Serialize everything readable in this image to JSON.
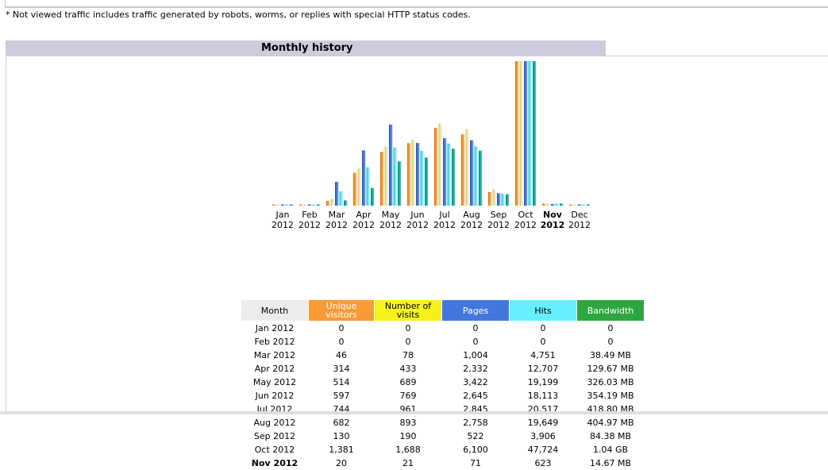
{
  "note": "* Not viewed traffic includes traffic generated by robots, worms, or replies with special HTTP status codes.",
  "panel": {
    "title": "Monthly history"
  },
  "table": {
    "headers": {
      "month": "Month",
      "unique": "Unique visitors",
      "visits": "Number of visits",
      "pages": "Pages",
      "hits": "Hits",
      "bandwidth": "Bandwidth"
    },
    "current_month": "Nov 2012",
    "rows": [
      {
        "month": "Jan 2012",
        "unique": "0",
        "visits": "0",
        "pages": "0",
        "hits": "0",
        "bandwidth": "0"
      },
      {
        "month": "Feb 2012",
        "unique": "0",
        "visits": "0",
        "pages": "0",
        "hits": "0",
        "bandwidth": "0"
      },
      {
        "month": "Mar 2012",
        "unique": "46",
        "visits": "78",
        "pages": "1,004",
        "hits": "4,751",
        "bandwidth": "38.49 MB"
      },
      {
        "month": "Apr 2012",
        "unique": "314",
        "visits": "433",
        "pages": "2,332",
        "hits": "12,707",
        "bandwidth": "129.67 MB"
      },
      {
        "month": "May 2012",
        "unique": "514",
        "visits": "689",
        "pages": "3,422",
        "hits": "19,199",
        "bandwidth": "326.03 MB"
      },
      {
        "month": "Jun 2012",
        "unique": "597",
        "visits": "769",
        "pages": "2,645",
        "hits": "18,113",
        "bandwidth": "354.19 MB"
      },
      {
        "month": "Jul 2012",
        "unique": "744",
        "visits": "961",
        "pages": "2,845",
        "hits": "20,517",
        "bandwidth": "418.80 MB"
      },
      {
        "month": "Aug 2012",
        "unique": "682",
        "visits": "893",
        "pages": "2,758",
        "hits": "19,649",
        "bandwidth": "404.97 MB"
      },
      {
        "month": "Sep 2012",
        "unique": "130",
        "visits": "190",
        "pages": "522",
        "hits": "3,906",
        "bandwidth": "84.38 MB"
      },
      {
        "month": "Oct 2012",
        "unique": "1,381",
        "visits": "1,688",
        "pages": "6,100",
        "hits": "47,724",
        "bandwidth": "1.04 GB"
      },
      {
        "month": "Nov 2012",
        "unique": "20",
        "visits": "21",
        "pages": "71",
        "hits": "623",
        "bandwidth": "14.67 MB"
      }
    ]
  },
  "colors": {
    "unique": "#f99a37",
    "visits": "#f7f21b",
    "pages": "#4477dd",
    "hits": "#66f0ff",
    "bandwidth": "#2ea640",
    "title_bar": "#ccccdd"
  },
  "chart_data": {
    "type": "bar",
    "categories": [
      "Jan",
      "Feb",
      "Mar",
      "Apr",
      "May",
      "Jun",
      "Jul",
      "Aug",
      "Sep",
      "Oct",
      "Nov",
      "Dec"
    ],
    "category_years": [
      "2012",
      "2012",
      "2012",
      "2012",
      "2012",
      "2012",
      "2012",
      "2012",
      "2012",
      "2012",
      "2012",
      "2012"
    ],
    "highlight_category": "Nov",
    "series": [
      {
        "key": "unique",
        "values": [
          0,
          0,
          46,
          314,
          514,
          597,
          744,
          682,
          130,
          1381,
          20,
          0
        ]
      },
      {
        "key": "visits",
        "values": [
          0,
          0,
          78,
          433,
          689,
          769,
          961,
          893,
          190,
          1688,
          21,
          0
        ]
      },
      {
        "key": "pages",
        "values": [
          0,
          0,
          1004,
          2332,
          3422,
          2645,
          2845,
          2758,
          522,
          6100,
          71,
          0
        ]
      },
      {
        "key": "hits",
        "values": [
          0,
          0,
          4751,
          12707,
          19199,
          18113,
          20517,
          19649,
          3906,
          47724,
          623,
          0
        ]
      },
      {
        "key": "bandwidth",
        "values": [
          0,
          0,
          38.49,
          129.67,
          326.03,
          354.19,
          418.8,
          404.97,
          84.38,
          1064.96,
          14.67,
          0
        ]
      }
    ]
  }
}
